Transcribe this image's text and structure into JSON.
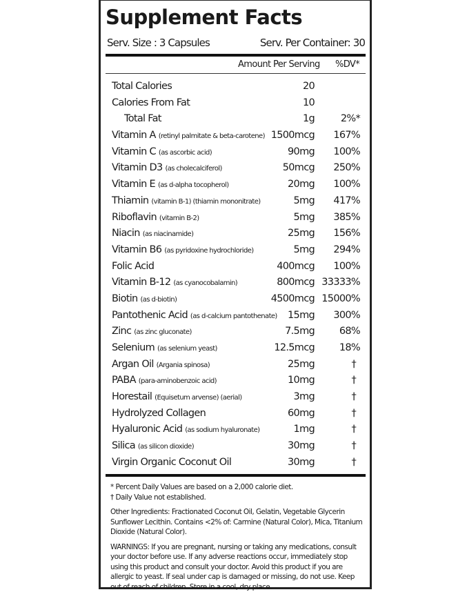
{
  "title": "Supplement Facts",
  "serving_size": "Serv. Size : 3 Capsules",
  "servings_per_container": "Serv. Per Container: 30",
  "header": {
    "amount": "Amount Per Serving",
    "dv": "%DV*"
  },
  "rows": [
    {
      "name": "Total Calories",
      "sub": "",
      "amount": "20",
      "dv": ""
    },
    {
      "name": "Calories From Fat",
      "sub": "",
      "amount": "10",
      "dv": ""
    },
    {
      "name": "Total Fat",
      "sub": "",
      "amount": "1g",
      "dv": "2%*"
    },
    {
      "name": "Vitamin A",
      "sub": "(retinyl palmitate & beta-carotene)",
      "amount": "1500mcg",
      "dv": "167%"
    },
    {
      "name": "Vitamin C",
      "sub": "(as ascorbic acid)",
      "amount": "90mg",
      "dv": "100%"
    },
    {
      "name": "Vitamin D3",
      "sub": "(as cholecalciferol)",
      "amount": "50mcg",
      "dv": "250%"
    },
    {
      "name": "Vitamin E",
      "sub": "(as d-alpha tocopherol)",
      "amount": "20mg",
      "dv": "100%"
    },
    {
      "name": "Thiamin",
      "sub": "(vitamin B-1) (thiamin mononitrate)",
      "amount": "5mg",
      "dv": "417%"
    },
    {
      "name": "Riboflavin",
      "sub": "(vitamin B-2)",
      "amount": "5mg",
      "dv": "385%"
    },
    {
      "name": "Niacin",
      "sub": "(as niacinamide)",
      "amount": "25mg",
      "dv": "156%"
    },
    {
      "name": "Vitamin B6",
      "sub": "(as pyridoxine hydrochloride)",
      "amount": "5mg",
      "dv": "294%"
    },
    {
      "name": "Folic Acid",
      "sub": "",
      "amount": "400mcg",
      "dv": "100%"
    },
    {
      "name": "Vitamin B-12",
      "sub": "(as cyanocobalamin)",
      "amount": "800mcg",
      "dv": "33333%"
    },
    {
      "name": "Biotin",
      "sub": "(as d-biotin)",
      "amount": "4500mcg",
      "dv": "15000%"
    },
    {
      "name": "Pantothenic Acid",
      "sub": "(as d-calcium pantothenate)",
      "amount": "15mg",
      "dv": "300%"
    },
    {
      "name": "Zinc",
      "sub": "(as zinc gluconate)",
      "amount": "7.5mg",
      "dv": "68%"
    },
    {
      "name": "Selenium",
      "sub": "(as selenium yeast)",
      "amount": "12.5mcg",
      "dv": "18%"
    },
    {
      "name": "Argan Oil",
      "sub": "(Argania spinosa)",
      "amount": "25mg",
      "dv": "†"
    },
    {
      "name": "PABA",
      "sub": "(para-aminobenzoic acid)",
      "amount": "10mg",
      "dv": "†"
    },
    {
      "name": "Horestail",
      "sub": "(Equisetum arvense) (aerial)",
      "amount": "3mg",
      "dv": "†"
    },
    {
      "name": "Hydrolyzed Collagen",
      "sub": "",
      "amount": "60mg",
      "dv": "†"
    },
    {
      "name": "Hyaluronic Acid",
      "sub": "(as sodium hyaluronate)",
      "amount": "1mg",
      "dv": "†"
    },
    {
      "name": "Silica",
      "sub": "(as silicon dioxide)",
      "amount": "30mg",
      "dv": "†"
    },
    {
      "name": "Virgin Organic Coconut Oil",
      "sub": "",
      "amount": "30mg",
      "dv": "†"
    }
  ],
  "footnotes": {
    "dv_note": "* Percent Daily Values are based on a 2,000 calorie diet.",
    "dagger_note": "† Daily Value not established.",
    "other_ingredients": "Other Ingredients: Fractionated Coconut Oil, Gelatin, Vegetable Glycerin Sunflower Lecithin. Contains <2% of: Carmine (Natural Color), Mica, Titanium Dioxide (Natural Color).",
    "warnings": "WARNINGS: If you are pregnant, nursing or taking any medications, consult your doctor before use. If any adverse reactions occur, immediately stop using this product and consult your doctor. Avoid this product if you are allergic to yeast. If seal under cap is damaged or missing, do not use. Keep out of reach of children. Store in a cool, dry place."
  }
}
